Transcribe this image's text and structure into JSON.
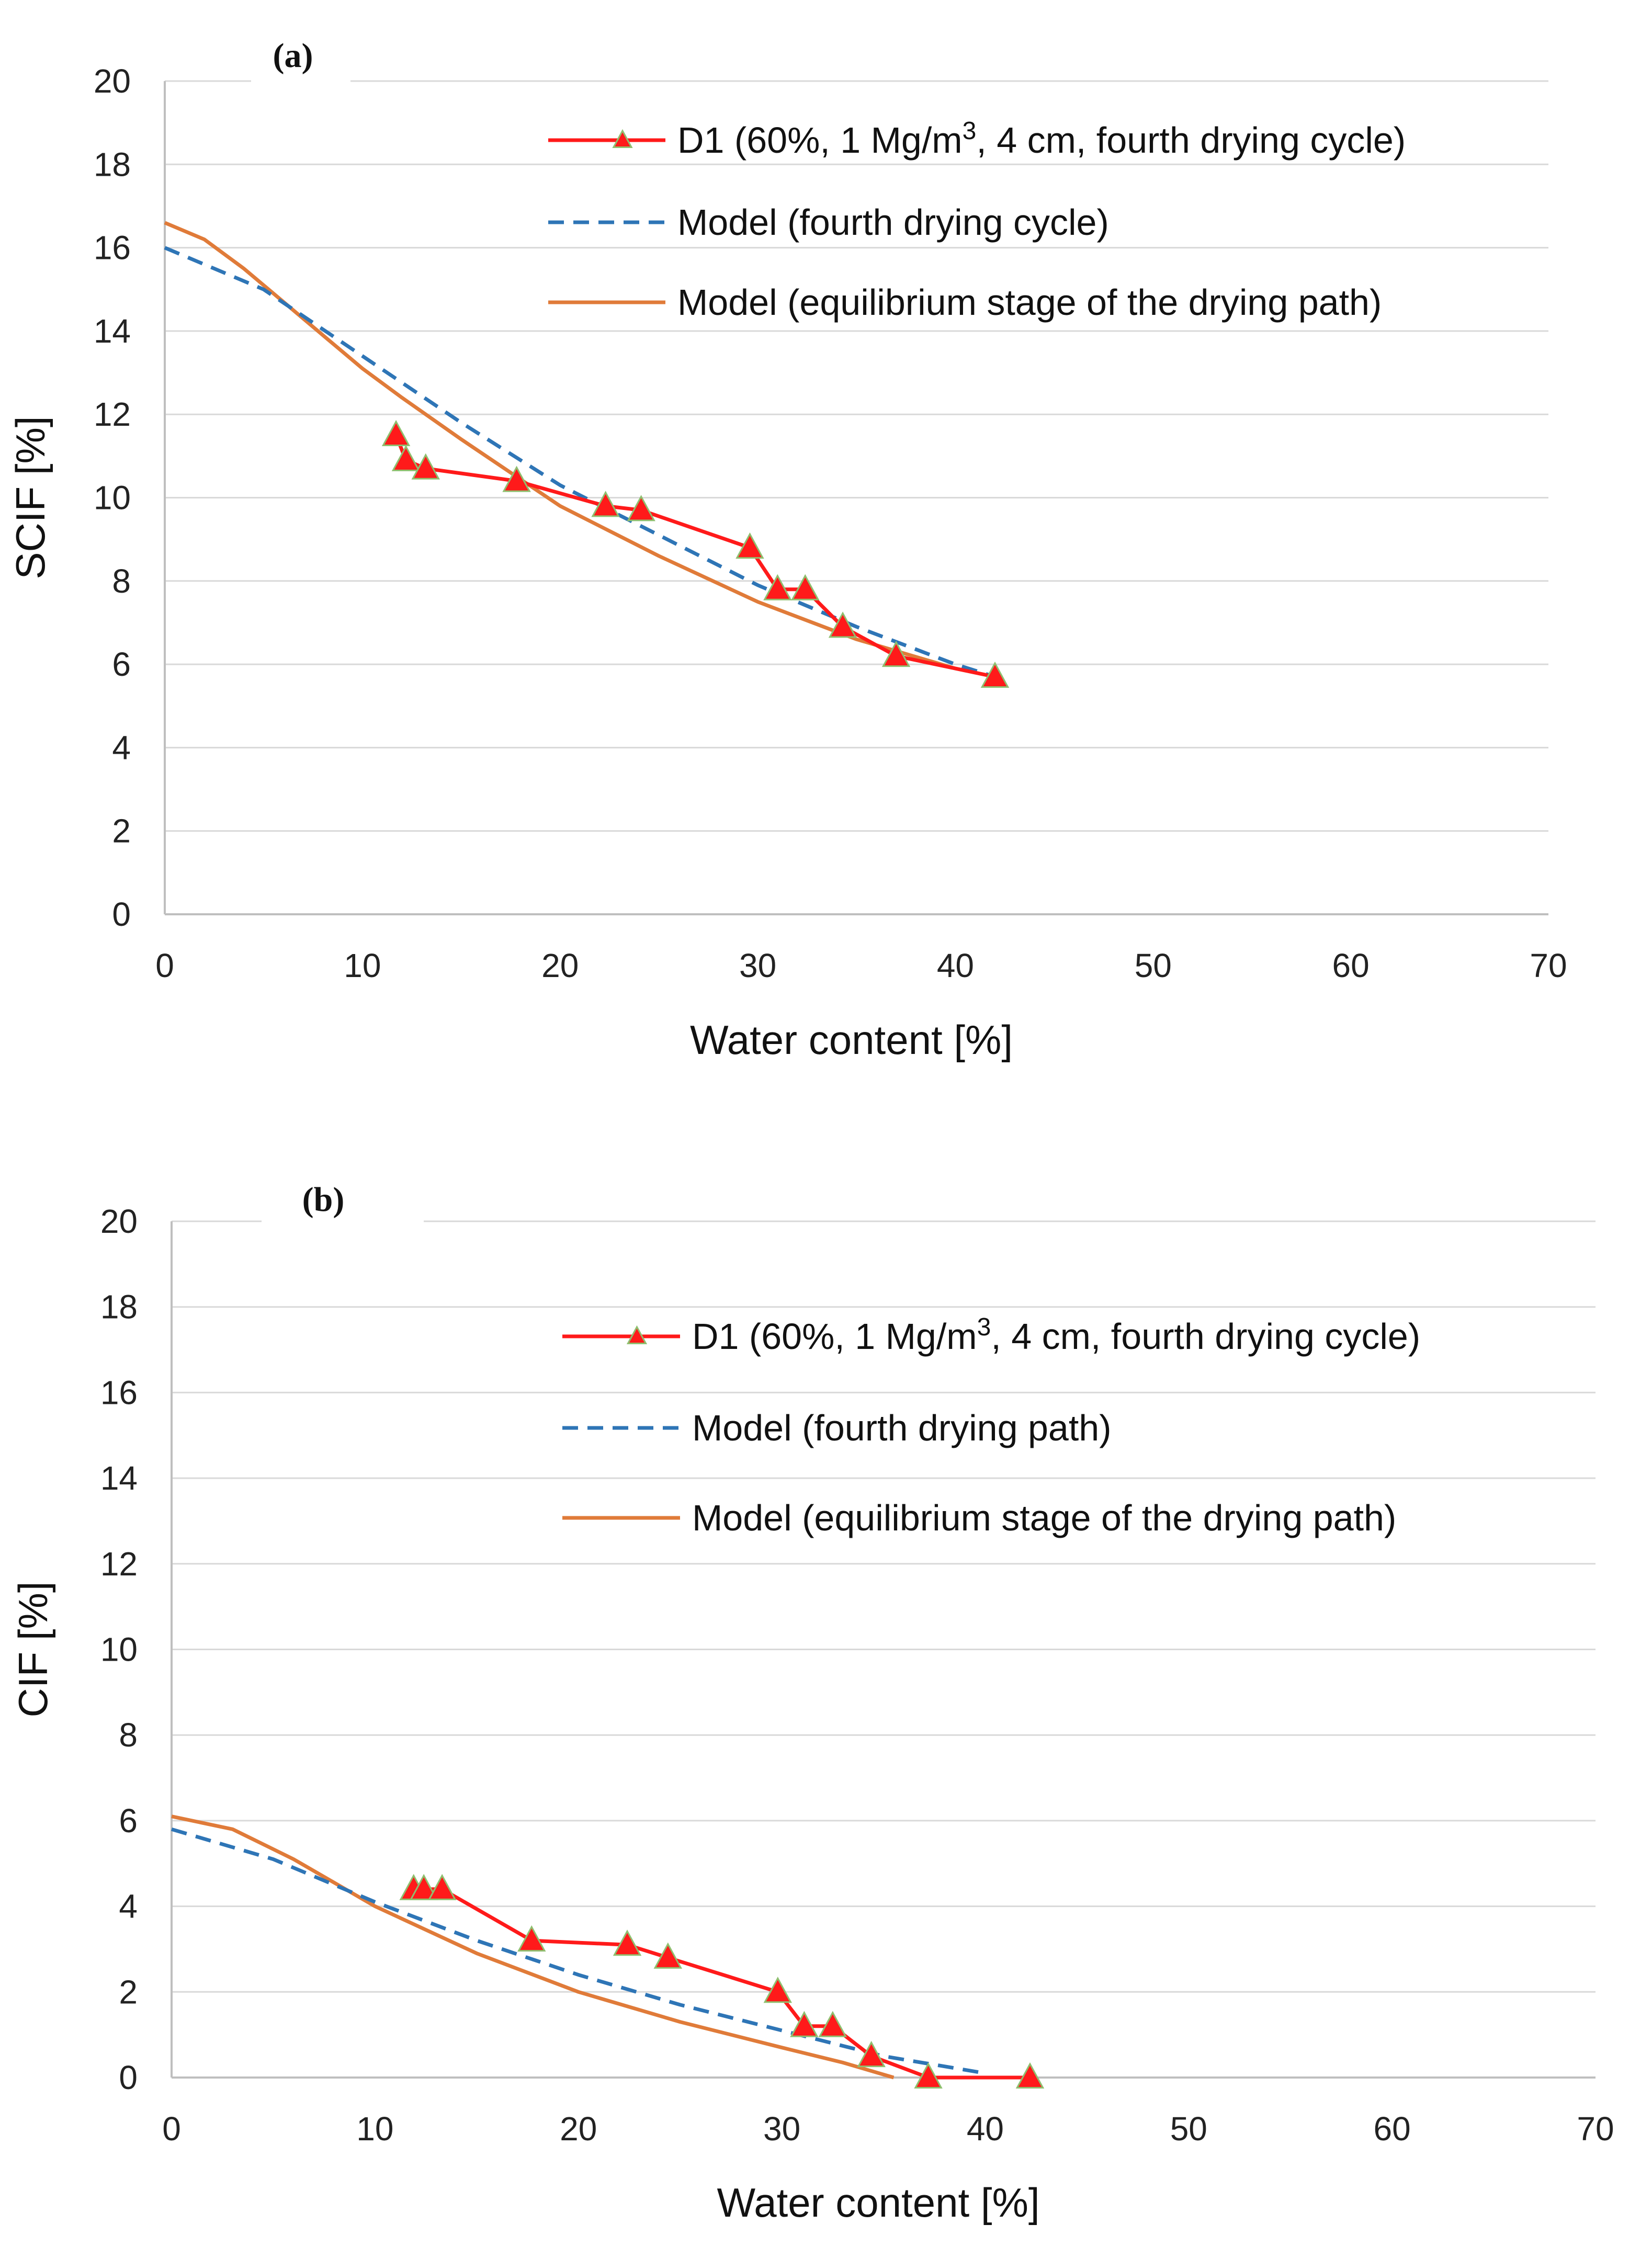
{
  "chart_data": [
    {
      "type": "line",
      "panel_label": "(a)",
      "xlabel": "Water content [%]",
      "ylabel": "SCIF [%]",
      "xlim": [
        0,
        70
      ],
      "ylim": [
        0,
        20
      ],
      "xticks": [
        0,
        10,
        20,
        30,
        40,
        50,
        60,
        70
      ],
      "yticks": [
        0,
        2,
        4,
        6,
        8,
        10,
        12,
        14,
        16,
        18,
        20
      ],
      "grid": "horizontal",
      "legend_position": "top-right",
      "series": [
        {
          "name": "D1 (60%, 1 Mg/m3, 4 cm, fourth drying cycle)",
          "legend_label_pre": "D1 (60%, 1 Mg/m",
          "legend_label_sup": "3",
          "legend_label_post": ", 4 cm, fourth drying cycle)",
          "style": "line-triangle",
          "color": "#ff1a1a",
          "x": [
            11.7,
            12.2,
            13.2,
            17.8,
            22.3,
            24.1,
            29.6,
            31.0,
            32.4,
            34.3,
            37.0,
            42.0
          ],
          "y": [
            11.5,
            10.9,
            10.7,
            10.4,
            9.8,
            9.7,
            8.8,
            7.8,
            7.8,
            6.9,
            6.2,
            5.7
          ]
        },
        {
          "name": "Model (fourth drying cycle)",
          "style": "dashed",
          "color": "#2e75b6",
          "x": [
            0,
            5,
            10,
            15,
            20,
            25,
            30,
            35,
            40,
            42
          ],
          "y": [
            16.0,
            15.0,
            13.4,
            11.8,
            10.3,
            9.1,
            7.9,
            6.9,
            6.0,
            5.7
          ]
        },
        {
          "name": "Model (equilibrium stage of the drying path)",
          "style": "solid",
          "color": "#e07b39",
          "x": [
            0,
            2,
            4,
            6,
            8,
            10,
            12,
            15,
            20,
            25,
            30,
            35,
            40,
            42
          ],
          "y": [
            16.6,
            16.2,
            15.5,
            14.7,
            13.9,
            13.1,
            12.4,
            11.4,
            9.8,
            8.6,
            7.5,
            6.6,
            5.9,
            5.7
          ]
        }
      ]
    },
    {
      "type": "line",
      "panel_label": "(b)",
      "xlabel": "Water content [%]",
      "ylabel": "CIF [%]",
      "xlim": [
        0,
        70
      ],
      "ylim": [
        0,
        20
      ],
      "xticks": [
        0,
        10,
        20,
        30,
        40,
        50,
        60,
        70
      ],
      "yticks": [
        0,
        2,
        4,
        6,
        8,
        10,
        12,
        14,
        16,
        18,
        20
      ],
      "grid": "horizontal",
      "legend_position": "top-right",
      "series": [
        {
          "name": "D1 (60%, 1 Mg/m3, 4 cm, fourth drying cycle)",
          "legend_label_pre": "D1 (60%, 1 Mg/m",
          "legend_label_sup": "3",
          "legend_label_post": ", 4 cm, fourth drying cycle)",
          "style": "line-triangle",
          "color": "#ff1a1a",
          "x": [
            11.9,
            12.4,
            13.3,
            17.7,
            22.4,
            24.4,
            29.8,
            31.1,
            32.5,
            34.4,
            37.2,
            42.2
          ],
          "y": [
            4.4,
            4.4,
            4.4,
            3.2,
            3.1,
            2.8,
            2.0,
            1.2,
            1.2,
            0.5,
            0.0,
            0.0
          ]
        },
        {
          "name": "Model (fourth drying path)",
          "style": "dashed",
          "color": "#2e75b6",
          "x": [
            0,
            5,
            10,
            15,
            20,
            25,
            30,
            35,
            40
          ],
          "y": [
            5.8,
            5.1,
            4.1,
            3.2,
            2.4,
            1.7,
            1.1,
            0.5,
            0.1
          ]
        },
        {
          "name": "Model (equilibrium stage of the drying path)",
          "style": "solid",
          "color": "#e07b39",
          "x": [
            0,
            3,
            6,
            10,
            15,
            20,
            25,
            30,
            33,
            35.5
          ],
          "y": [
            6.1,
            5.8,
            5.1,
            4.0,
            2.9,
            2.0,
            1.3,
            0.7,
            0.35,
            0.0
          ]
        }
      ]
    }
  ]
}
